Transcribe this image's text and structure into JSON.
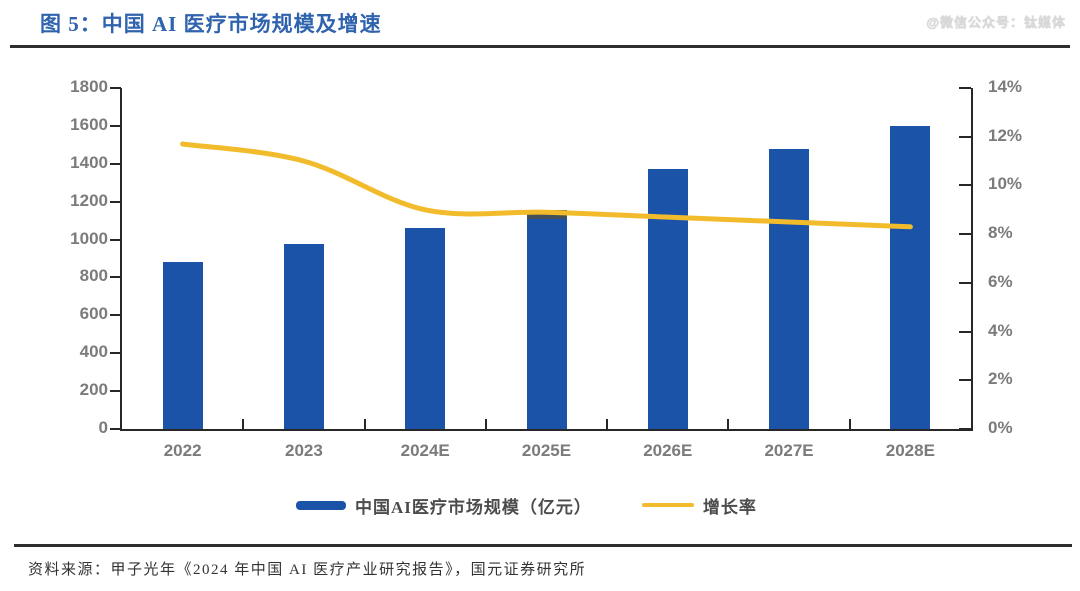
{
  "header": {
    "title": "图 5：中国 AI 医疗市场规模及增速",
    "watermark": "@微信公众号：钛媒体"
  },
  "legend": [
    {
      "label": "中国AI医疗市场规模（亿元）",
      "swatch": "bar",
      "color": "#1B53A8"
    },
    {
      "label": "增长率",
      "swatch": "line",
      "color": "#F2BB2C"
    }
  ],
  "source": "资料来源：甲子光年《2024 年中国 AI 医疗产业研究报告》，国元证券研究所",
  "colors": {
    "bar": "#1B53A8",
    "line": "#F2BB2C",
    "bar_cap": "#44515B",
    "axis": "#272727",
    "axis_text": "#7b7b7b",
    "title": "#2F63AE"
  },
  "chart_data": {
    "type": "bar",
    "subtype": "bar+line combo, dual axis",
    "title": "中国 AI 医疗市场规模及增速",
    "categories": [
      "2022",
      "2023",
      "2024E",
      "2025E",
      "2026E",
      "2027E",
      "2028E"
    ],
    "series": [
      {
        "name": "中国AI医疗市场规模（亿元）",
        "type": "bar",
        "axis": "left",
        "color": "#1B53A8",
        "values": [
          880,
          975,
          1060,
          1155,
          1370,
          1480,
          1600
        ]
      },
      {
        "name": "增长率",
        "type": "line",
        "axis": "right",
        "color": "#F2BB2C",
        "values": [
          11.7,
          11.0,
          9.0,
          8.9,
          8.7,
          8.5,
          8.3
        ]
      }
    ],
    "left_axis": {
      "min": 0,
      "max": 1800,
      "step": 200,
      "tick_labels": [
        "0",
        "200",
        "400",
        "600",
        "800",
        "1000",
        "1200",
        "1400",
        "1600",
        "1800"
      ]
    },
    "right_axis": {
      "min": 0,
      "max": 14,
      "step": 2,
      "tick_labels": [
        "0%",
        "2%",
        "4%",
        "6%",
        "8%",
        "10%",
        "12%",
        "14%"
      ]
    },
    "bar_cap": {
      "category_index": 3,
      "color": "#44515B",
      "height": 9
    },
    "grid": false,
    "legend_position": "bottom"
  }
}
